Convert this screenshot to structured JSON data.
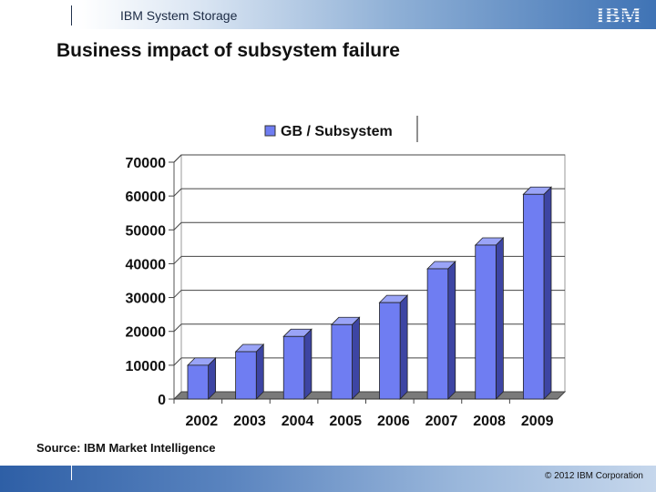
{
  "header": {
    "brand": "IBM System Storage",
    "logo_text": "IBM"
  },
  "slide": {
    "title": "Business impact of subsystem failure"
  },
  "chart_data": {
    "type": "bar",
    "categories": [
      "2002",
      "2003",
      "2004",
      "2005",
      "2006",
      "2007",
      "2008",
      "2009"
    ],
    "series": [
      {
        "name": "GB / Subsystem",
        "values": [
          10000,
          14000,
          18500,
          22000,
          28500,
          38500,
          45500,
          60500
        ]
      }
    ],
    "ylim": [
      0,
      70000
    ],
    "yticks": [
      "0",
      "10000",
      "20000",
      "30000",
      "40000",
      "50000",
      "60000",
      "70000"
    ],
    "legend_position": "top",
    "grid": true,
    "colors": {
      "bar_front": "#6f7df2",
      "bar_side": "#3d45a3",
      "bar_top": "#9aa4f7",
      "floor": "#7a7a7a"
    }
  },
  "footer": {
    "source": "Source: IBM Market Intelligence",
    "copyright": "© 2012 IBM Corporation"
  }
}
